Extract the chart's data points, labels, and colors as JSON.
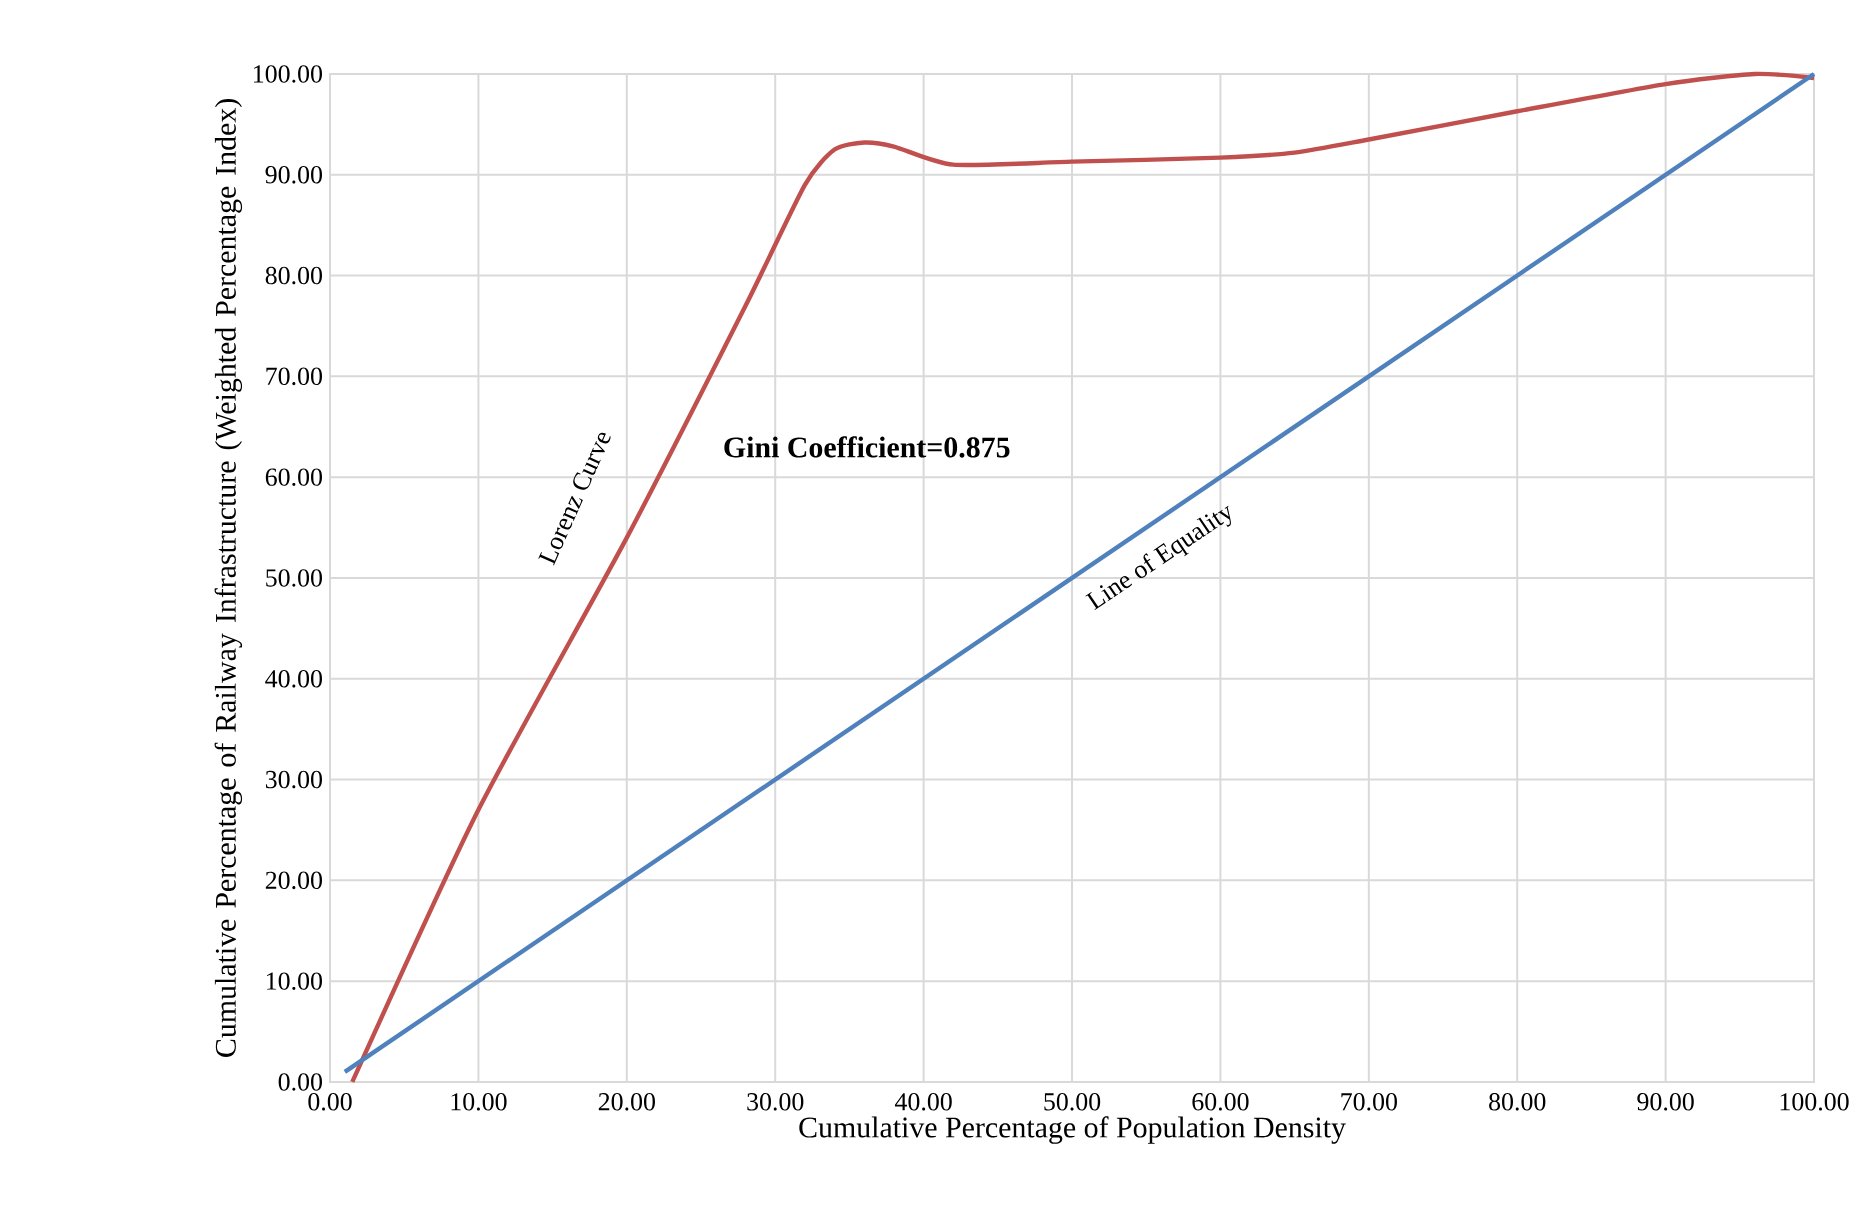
{
  "chart_data": {
    "type": "line",
    "xlabel": "Cumulative  Percentage of Population Density",
    "ylabel": "Cumulative  Percentage of Railway  Infrastructure (Weighted Percentage Index)",
    "annotations": [
      "Gini Coefficient=0.875"
    ],
    "series": [
      {
        "name": "Lorenz Curve",
        "color": "#c0504d",
        "x": [
          1.5,
          10,
          20,
          28,
          32,
          34,
          36,
          38,
          42,
          50,
          60,
          65,
          70,
          80,
          90,
          96,
          100
        ],
        "values": [
          0,
          27,
          54,
          77,
          89,
          92.5,
          93.2,
          92.8,
          91,
          91.3,
          91.7,
          92.2,
          93.5,
          96.3,
          99,
          100,
          99.6
        ]
      },
      {
        "name": "Line of Equality",
        "color": "#4f81bd",
        "x": [
          1,
          100
        ],
        "values": [
          1,
          100
        ]
      }
    ],
    "xlim": [
      0,
      100
    ],
    "ylim": [
      0,
      100
    ],
    "xticks": [
      {
        "value": 0,
        "label": "0.00"
      },
      {
        "value": 10,
        "label": "10.00"
      },
      {
        "value": 20,
        "label": "20.00"
      },
      {
        "value": 30,
        "label": "30.00"
      },
      {
        "value": 40,
        "label": "40.00"
      },
      {
        "value": 50,
        "label": "50.00"
      },
      {
        "value": 60,
        "label": "60.00"
      },
      {
        "value": 70,
        "label": "70.00"
      },
      {
        "value": 80,
        "label": "80.00"
      },
      {
        "value": 90,
        "label": "90.00"
      },
      {
        "value": 100,
        "label": "100.00"
      }
    ],
    "yticks": [
      {
        "value": 0,
        "label": "0.00"
      },
      {
        "value": 10,
        "label": "10.00"
      },
      {
        "value": 20,
        "label": "20.00"
      },
      {
        "value": 30,
        "label": "30.00"
      },
      {
        "value": 40,
        "label": "40.00"
      },
      {
        "value": 50,
        "label": "50.00"
      },
      {
        "value": 60,
        "label": "60.00"
      },
      {
        "value": 70,
        "label": "70.00"
      },
      {
        "value": 80,
        "label": "80.00"
      },
      {
        "value": 90,
        "label": "90.00"
      },
      {
        "value": 100,
        "label": "100.00"
      }
    ],
    "grid": true,
    "legend": false,
    "marker": "none",
    "line_style": "solid"
  }
}
